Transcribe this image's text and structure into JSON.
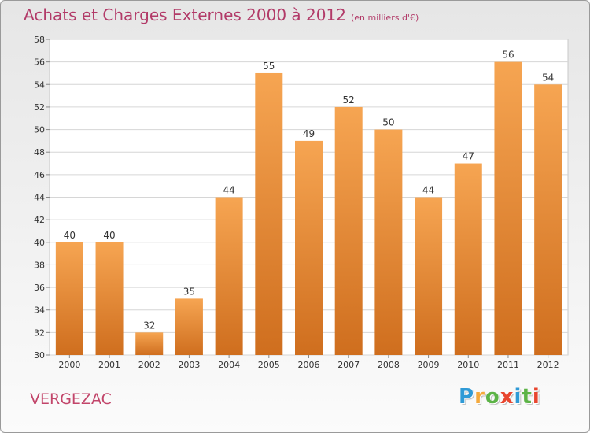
{
  "title": "Achats et Charges Externes 2000 à 2012",
  "subtitle": "(en milliers d'€)",
  "commune": "VERGEZAC",
  "logo": {
    "letters": [
      "P",
      "r",
      "o",
      "x",
      "i",
      "t",
      "i"
    ],
    "colors": [
      "#2f9ad6",
      "#f4a93c",
      "#5cb346",
      "#e8462f",
      "#2f9ad6",
      "#5cb346",
      "#e8462f"
    ]
  },
  "chart_data": {
    "type": "bar",
    "categories": [
      "2000",
      "2001",
      "2002",
      "2003",
      "2004",
      "2005",
      "2006",
      "2007",
      "2008",
      "2009",
      "2010",
      "2011",
      "2012"
    ],
    "values": [
      40,
      40,
      32,
      35,
      44,
      55,
      49,
      52,
      50,
      44,
      47,
      56,
      54
    ],
    "ylim": [
      30,
      58
    ],
    "yticks": [
      30,
      32,
      34,
      36,
      38,
      40,
      42,
      44,
      46,
      48,
      50,
      52,
      54,
      56,
      58
    ],
    "grid": true,
    "bar_color_top": "#f6a552",
    "bar_color_bottom": "#cf6e1e"
  }
}
